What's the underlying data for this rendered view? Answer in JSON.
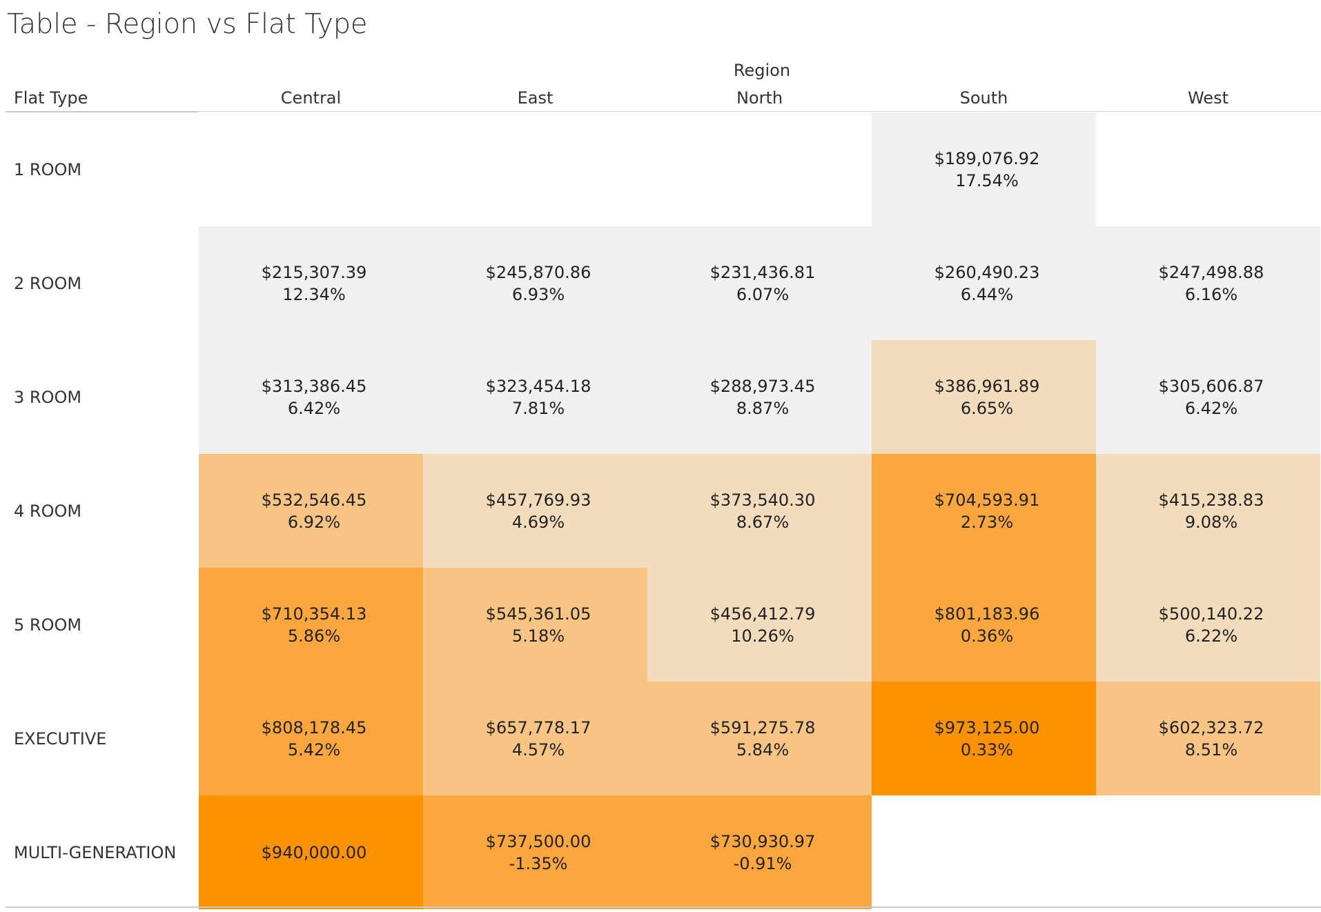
{
  "chart_data": {
    "type": "table",
    "title": "Table - Region vs Flat Type",
    "column_group_label": "Region",
    "row_header_label": "Flat Type",
    "columns": [
      "Central",
      "East",
      "North",
      "South",
      "West"
    ],
    "rows": [
      {
        "label": "1 ROOM",
        "cells": [
          null,
          null,
          null,
          {
            "value": "$189,076.92",
            "pct": "17.54%",
            "color": "#f0f0f0"
          },
          null
        ]
      },
      {
        "label": "2 ROOM",
        "cells": [
          {
            "value": "$215,307.39",
            "pct": "12.34%",
            "color": "#f0f0f0"
          },
          {
            "value": "$245,870.86",
            "pct": "6.93%",
            "color": "#f0f0f0"
          },
          {
            "value": "$231,436.81",
            "pct": "6.07%",
            "color": "#f0f0f0"
          },
          {
            "value": "$260,490.23",
            "pct": "6.44%",
            "color": "#f0f0f0"
          },
          {
            "value": "$247,498.88",
            "pct": "6.16%",
            "color": "#f0f0f0"
          }
        ]
      },
      {
        "label": "3 ROOM",
        "cells": [
          {
            "value": "$313,386.45",
            "pct": "6.42%",
            "color": "#f0f0f0"
          },
          {
            "value": "$323,454.18",
            "pct": "7.81%",
            "color": "#f0f0f0"
          },
          {
            "value": "$288,973.45",
            "pct": "8.87%",
            "color": "#f0f0f0"
          },
          {
            "value": "$386,961.89",
            "pct": "6.65%",
            "color": "#f3dcbb"
          },
          {
            "value": "$305,606.87",
            "pct": "6.42%",
            "color": "#f0f0f0"
          }
        ]
      },
      {
        "label": "4 ROOM",
        "cells": [
          {
            "value": "$532,546.45",
            "pct": "6.92%",
            "color": "#f7c484"
          },
          {
            "value": "$457,769.93",
            "pct": "4.69%",
            "color": "#f3dcbb"
          },
          {
            "value": "$373,540.30",
            "pct": "8.67%",
            "color": "#f3dcbb"
          },
          {
            "value": "$704,593.91",
            "pct": "2.73%",
            "color": "#fba73e"
          },
          {
            "value": "$415,238.83",
            "pct": "9.08%",
            "color": "#f3dcbb"
          }
        ]
      },
      {
        "label": "5 ROOM",
        "cells": [
          {
            "value": "$710,354.13",
            "pct": "5.86%",
            "color": "#fba73e"
          },
          {
            "value": "$545,361.05",
            "pct": "5.18%",
            "color": "#f7c484"
          },
          {
            "value": "$456,412.79",
            "pct": "10.26%",
            "color": "#f3dcbb"
          },
          {
            "value": "$801,183.96",
            "pct": "0.36%",
            "color": "#fba73e"
          },
          {
            "value": "$500,140.22",
            "pct": "6.22%",
            "color": "#f3dcbb"
          }
        ]
      },
      {
        "label": "EXECUTIVE",
        "cells": [
          {
            "value": "$808,178.45",
            "pct": "5.42%",
            "color": "#fba73e"
          },
          {
            "value": "$657,778.17",
            "pct": "4.57%",
            "color": "#f7c484"
          },
          {
            "value": "$591,275.78",
            "pct": "5.84%",
            "color": "#f7c484"
          },
          {
            "value": "$973,125.00",
            "pct": "0.33%",
            "color": "#fd9200"
          },
          {
            "value": "$602,323.72",
            "pct": "8.51%",
            "color": "#f7c484"
          }
        ]
      },
      {
        "label": "MULTI-GENERATION",
        "cells": [
          {
            "value": "$940,000.00",
            "pct": "",
            "color": "#fd9200"
          },
          {
            "value": "$737,500.00",
            "pct": "-1.35%",
            "color": "#fba73e"
          },
          {
            "value": "$730,930.97",
            "pct": "-0.91%",
            "color": "#fba73e"
          },
          null,
          null
        ]
      }
    ]
  }
}
